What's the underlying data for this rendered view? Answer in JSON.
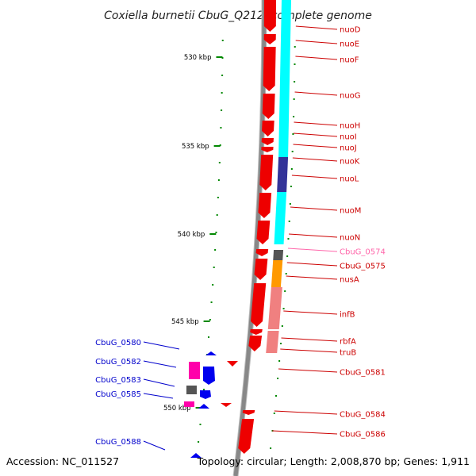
{
  "title": "Coxiella burnetii CbuG_Q212, complete genome",
  "footer": {
    "accession": "Accession: NC_011527",
    "summary": "Topology: circular; Length: 2,008,870 bp; Genes: 1,911"
  },
  "colors": {
    "backbone": "#888888",
    "cds_forward": "#ee0000",
    "cds_reverse": "#0000ee",
    "cog_energy": "#00ffff",
    "cog_translation": "#f08080",
    "cog_transcription": "#ff9900",
    "cog_unknown": "#555555",
    "cog_magenta": "#ff00aa",
    "cog_purple": "#333399",
    "label_forward": "#cc0000",
    "label_reverse": "#0000cc",
    "label_faint": "#ff66aa",
    "tick": "#008800"
  },
  "scale": {
    "unit": "kbp",
    "ticks": [
      {
        "label": "530 kbp"
      },
      {
        "label": "535 kbp"
      },
      {
        "label": "540 kbp"
      },
      {
        "label": "545 kbp"
      },
      {
        "label": "550 kbp"
      }
    ]
  },
  "genes_right": [
    {
      "name": "nuoD",
      "color": "label_forward"
    },
    {
      "name": "nuoE",
      "color": "label_forward"
    },
    {
      "name": "nuoF",
      "color": "label_forward"
    },
    {
      "name": "nuoG",
      "color": "label_forward"
    },
    {
      "name": "nuoH",
      "color": "label_forward"
    },
    {
      "name": "nuoI",
      "color": "label_forward"
    },
    {
      "name": "nuoJ",
      "color": "label_forward"
    },
    {
      "name": "nuoK",
      "color": "label_forward"
    },
    {
      "name": "nuoL",
      "color": "label_forward"
    },
    {
      "name": "nuoM",
      "color": "label_forward"
    },
    {
      "name": "nuoN",
      "color": "label_forward"
    },
    {
      "name": "CbuG_0574",
      "color": "label_faint"
    },
    {
      "name": "CbuG_0575",
      "color": "label_forward"
    },
    {
      "name": "nusA",
      "color": "label_forward"
    },
    {
      "name": "infB",
      "color": "label_forward"
    },
    {
      "name": "rbfA",
      "color": "label_forward"
    },
    {
      "name": "truB",
      "color": "label_forward"
    },
    {
      "name": "CbuG_0581",
      "color": "label_forward"
    },
    {
      "name": "CbuG_0584",
      "color": "label_forward"
    },
    {
      "name": "CbuG_0586",
      "color": "label_forward"
    }
  ],
  "genes_left": [
    {
      "name": "CbuG_0580",
      "color": "label_reverse"
    },
    {
      "name": "CbuG_0582",
      "color": "label_reverse"
    },
    {
      "name": "CbuG_0583",
      "color": "label_reverse"
    },
    {
      "name": "CbuG_0585",
      "color": "label_reverse"
    },
    {
      "name": "CbuG_0588",
      "color": "label_reverse"
    }
  ]
}
